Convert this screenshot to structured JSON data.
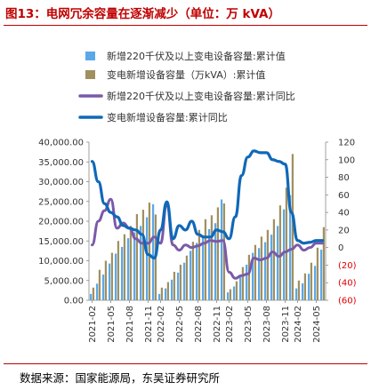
{
  "figure": {
    "title": "图13：电网冗余容量在逐渐减少（单位：万 kVA）",
    "source": "数据来源：国家能源局，东吴证券研究所"
  },
  "chart_data": {
    "type": "bar+line",
    "title": "",
    "xlabel": "",
    "ylabel": "",
    "ylim_left": [
      0,
      40000
    ],
    "ylim_right": [
      -60,
      120
    ],
    "yticks_left": [
      "0.00",
      "5,000.00",
      "10,000.00",
      "15,000.00",
      "20,000.00",
      "25,000.00",
      "30,000.00",
      "35,000.00",
      "40,000.00"
    ],
    "yticks_right": [
      {
        "label": "(60)",
        "negative": true
      },
      {
        "label": "(40)",
        "negative": true
      },
      {
        "label": "(20)",
        "negative": true
      },
      {
        "label": "0",
        "negative": false
      },
      {
        "label": "20",
        "negative": false
      },
      {
        "label": "40",
        "negative": false
      },
      {
        "label": "60",
        "negative": false
      },
      {
        "label": "80",
        "negative": false
      },
      {
        "label": "100",
        "negative": false
      },
      {
        "label": "120",
        "negative": false
      }
    ],
    "x": [
      "2021-02",
      "2021-03",
      "2021-04",
      "2021-05",
      "2021-06",
      "2021-07",
      "2021-08",
      "2021-09",
      "2021-10",
      "2021-11",
      "2021-12",
      "2022-02",
      "2022-03",
      "2022-04",
      "2022-05",
      "2022-06",
      "2022-07",
      "2022-08",
      "2022-09",
      "2022-10",
      "2022-11",
      "2022-12",
      "2023-02",
      "2023-03",
      "2023-04",
      "2023-05",
      "2023-06",
      "2023-07",
      "2023-08",
      "2023-09",
      "2023-10",
      "2023-11",
      "2023-12",
      "2024-02",
      "2024-03",
      "2024-04",
      "2024-05",
      "2024-06"
    ],
    "x_tick_labels": [
      "2021-02",
      "2021-05",
      "2021-08",
      "2021-11",
      "2022-02",
      "2022-05",
      "2022-08",
      "2022-11",
      "2023-02",
      "2023-05",
      "2023-08",
      "2023-11",
      "2024-02",
      "2024-05"
    ],
    "legend": [
      {
        "name": "新增220千伏及以上变电设备容量:累计值",
        "style": "bar",
        "color": "#5ba8e8"
      },
      {
        "name": "变电新增设备容量（万kVA）:累计值",
        "style": "bar",
        "color": "#a09060"
      },
      {
        "name": "新增220千伏及以上变电设备容量:累计同比",
        "style": "line",
        "color": "#7a5aa8"
      },
      {
        "name": "变电新增设备容量:累计同比",
        "style": "line",
        "color": "#1068b8"
      }
    ],
    "series": [
      {
        "name": "新增220千伏及以上变电设备容量:累计值",
        "axis": "left",
        "type": "bar",
        "color": "#5ba8e8",
        "values": [
          1600,
          4200,
          6500,
          9300,
          11800,
          13500,
          15700,
          17200,
          18800,
          21000,
          24300,
          1600,
          3000,
          5200,
          7000,
          9500,
          12500,
          14500,
          16500,
          18000,
          19500,
          25500,
          2000,
          3500,
          6400,
          9000,
          12000,
          13200,
          14700,
          16600,
          18800,
          23000,
          26600,
          3000,
          4300,
          6700,
          8700,
          12800
        ]
      },
      {
        "name": "变电新增设备容量（万kVA）:累计值",
        "axis": "left",
        "type": "bar",
        "color": "#a09060",
        "values": [
          3200,
          7700,
          10000,
          12000,
          15000,
          16700,
          18800,
          21800,
          22900,
          24700,
          21700,
          3200,
          4600,
          7200,
          9000,
          11300,
          14800,
          17800,
          20500,
          21500,
          23500,
          24500,
          2800,
          4800,
          8400,
          11500,
          14000,
          16100,
          17800,
          20500,
          24000,
          28500,
          37000,
          5000,
          6800,
          9500,
          13300,
          18500
        ]
      },
      {
        "name": "新增220千伏及以上变电设备容量:累计同比",
        "axis": "right",
        "type": "line",
        "color": "#7a5aa8",
        "values": [
          3,
          30,
          42,
          55,
          22,
          28,
          22,
          10,
          5,
          5,
          12,
          5,
          50,
          3,
          -3,
          3,
          0,
          2,
          5,
          8,
          7,
          8,
          -28,
          -35,
          -32,
          -30,
          -12,
          -14,
          -12,
          -5,
          -10,
          -5,
          -2,
          3,
          -3,
          0,
          5,
          5
        ]
      },
      {
        "name": "变电新增设备容量:累计同比",
        "axis": "right",
        "type": "line",
        "color": "#1068b8",
        "values": [
          98,
          75,
          50,
          40,
          35,
          25,
          22,
          20,
          15,
          -8,
          -12,
          20,
          52,
          10,
          25,
          20,
          30,
          15,
          12,
          12,
          20,
          18,
          10,
          35,
          82,
          103,
          110,
          108,
          108,
          100,
          98,
          95,
          40,
          8,
          5,
          6,
          8,
          8
        ]
      }
    ]
  }
}
